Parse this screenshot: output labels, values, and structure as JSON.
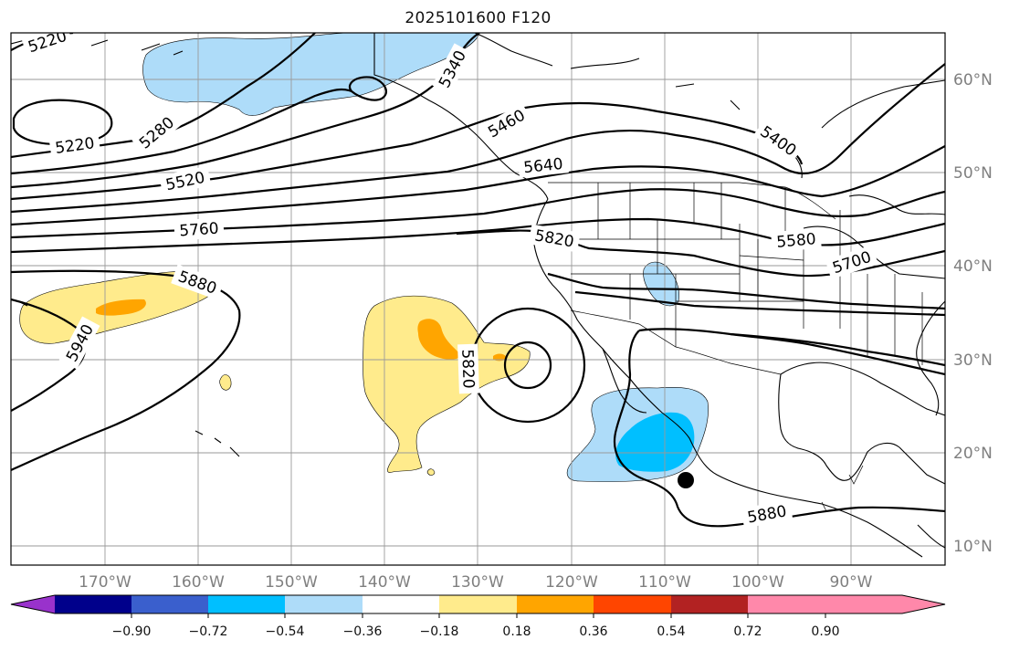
{
  "title": "2025101600 F120",
  "map": {
    "lat_labels": [
      "60°N",
      "50°N",
      "40°N",
      "30°N",
      "20°N",
      "10°N"
    ],
    "lon_labels": [
      "170°W",
      "160°W",
      "150°W",
      "140°W",
      "130°W",
      "120°W",
      "110°W",
      "100°W",
      "90°W"
    ],
    "contour_labels": [
      "5220",
      "5220",
      "5280",
      "5340",
      "5460",
      "5400",
      "5520",
      "5640",
      "5760",
      "5820",
      "5580",
      "5700",
      "5880",
      "5940",
      "5820",
      "5880"
    ],
    "fill_colors": {
      "pos_018_036": "#ffeb8c",
      "pos_036_054": "#ffa500",
      "neg_018_036": "#aedcf9",
      "neg_036_054": "#00bfff"
    },
    "marker": "filled-circle"
  },
  "colorbar": {
    "ticks": [
      "−0.90",
      "−0.72",
      "−0.54",
      "−0.36",
      "−0.18",
      "0.18",
      "0.36",
      "0.54",
      "0.72",
      "0.90"
    ],
    "colors": [
      "#9932cc",
      "#00008b",
      "#3a5fcd",
      "#00bfff",
      "#aedcf9",
      "#ffffff",
      "#ffeb8c",
      "#ffa500",
      "#ff4500",
      "#b22222",
      "#ff88aa",
      "#ff88aa"
    ]
  }
}
